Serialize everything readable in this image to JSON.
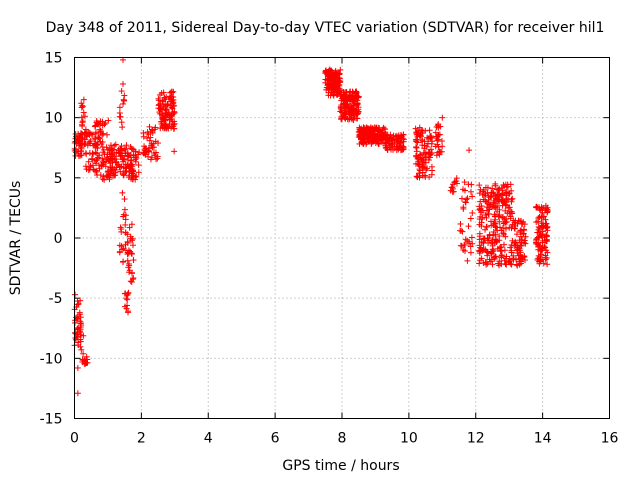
{
  "chart_data": {
    "type": "scatter",
    "title": "Day 348 of 2011, Sidereal Day-to-day VTEC variation (SDTVAR) for receiver hil1",
    "xlabel": "GPS time / hours",
    "ylabel": "SDTVAR / TECUs",
    "xlim": [
      0,
      16
    ],
    "ylim": [
      -15,
      15
    ],
    "xticks": [
      0,
      2,
      4,
      6,
      8,
      10,
      12,
      14,
      16
    ],
    "yticks": [
      -15,
      -10,
      -5,
      0,
      5,
      10,
      15
    ],
    "xtick_labels": [
      "0",
      "2",
      "4",
      "6",
      "8",
      "10",
      "12",
      "14",
      "16"
    ],
    "ytick_labels": [
      "-15",
      "-10",
      "-5",
      "0",
      "5",
      "10",
      "15"
    ],
    "grid": true,
    "marker": "+",
    "color": "#ff0000",
    "series": [
      {
        "name": "SDTVAR",
        "clusters": [
          {
            "x": [
              0.0,
              0.25
            ],
            "y": [
              6.8,
              8.7
            ],
            "n": 40
          },
          {
            "x": [
              0.2,
              0.35
            ],
            "y": [
              7.0,
              11.5
            ],
            "n": 20
          },
          {
            "x": [
              0.3,
              0.7
            ],
            "y": [
              5.5,
              8.8
            ],
            "n": 45
          },
          {
            "x": [
              0.6,
              1.1
            ],
            "y": [
              4.8,
              9.8
            ],
            "n": 80
          },
          {
            "x": [
              1.05,
              1.6
            ],
            "y": [
              5.0,
              7.8
            ],
            "n": 80
          },
          {
            "x": [
              1.6,
              1.95
            ],
            "y": [
              4.8,
              7.6
            ],
            "n": 50
          },
          {
            "x": [
              1.35,
              1.5
            ],
            "y": [
              9.0,
              12.8
            ],
            "n": 12
          },
          {
            "x": [
              1.35,
              1.55
            ],
            "y": [
              -2.0,
              4.5
            ],
            "n": 22
          },
          {
            "x": [
              1.5,
              1.62
            ],
            "y": [
              -6.2,
              -4.5
            ],
            "n": 12
          },
          {
            "x": [
              1.58,
              1.78
            ],
            "y": [
              -3.8,
              1.2
            ],
            "n": 30
          },
          {
            "x": [
              2.05,
              2.5
            ],
            "y": [
              6.5,
              9.3
            ],
            "n": 45
          },
          {
            "x": [
              2.5,
              3.0
            ],
            "y": [
              9.0,
              12.2
            ],
            "n": 110
          },
          {
            "x": [
              0.0,
              0.2
            ],
            "y": [
              -9.0,
              -4.5
            ],
            "n": 40
          },
          {
            "x": [
              0.15,
              0.3
            ],
            "y": [
              -10.5,
              -8.0
            ],
            "n": 10
          },
          {
            "x": [
              0.28,
              0.4
            ],
            "y": [
              -10.5,
              -9.8
            ],
            "n": 12
          },
          {
            "x": [
              7.5,
              7.95
            ],
            "y": [
              11.8,
              14.0
            ],
            "n": 140
          },
          {
            "x": [
              7.95,
              8.5
            ],
            "y": [
              9.8,
              12.2
            ],
            "n": 160
          },
          {
            "x": [
              8.5,
              9.3
            ],
            "y": [
              7.8,
              9.2
            ],
            "n": 180
          },
          {
            "x": [
              9.3,
              9.85
            ],
            "y": [
              7.3,
              8.6
            ],
            "n": 80
          },
          {
            "x": [
              10.2,
              10.7
            ],
            "y": [
              5.0,
              9.2
            ],
            "n": 100
          },
          {
            "x": [
              10.8,
              11.0
            ],
            "y": [
              6.8,
              9.5
            ],
            "n": 25
          },
          {
            "x": [
              11.25,
              11.45
            ],
            "y": [
              3.8,
              5.0
            ],
            "n": 12
          },
          {
            "x": [
              11.5,
              11.9
            ],
            "y": [
              -1.8,
              4.8
            ],
            "n": 35
          },
          {
            "x": [
              12.1,
              13.1
            ],
            "y": [
              -2.3,
              4.5
            ],
            "n": 260
          },
          {
            "x": [
              13.1,
              13.5
            ],
            "y": [
              -2.3,
              1.5
            ],
            "n": 70
          },
          {
            "x": [
              13.8,
              14.15
            ],
            "y": [
              -2.2,
              3.0
            ],
            "n": 110
          }
        ],
        "outliers": [
          {
            "x": 1.45,
            "y": 14.8
          },
          {
            "x": 1.45,
            "y": 12.8
          },
          {
            "x": 0.28,
            "y": 11.5
          },
          {
            "x": 0.1,
            "y": -12.9
          },
          {
            "x": 0.1,
            "y": -10.8
          },
          {
            "x": 11.8,
            "y": 7.3
          },
          {
            "x": 11.75,
            "y": -1.9
          },
          {
            "x": 11.0,
            "y": 10.0
          },
          {
            "x": 1.45,
            "y": -2.0
          },
          {
            "x": 2.98,
            "y": 7.2
          }
        ]
      }
    ]
  }
}
